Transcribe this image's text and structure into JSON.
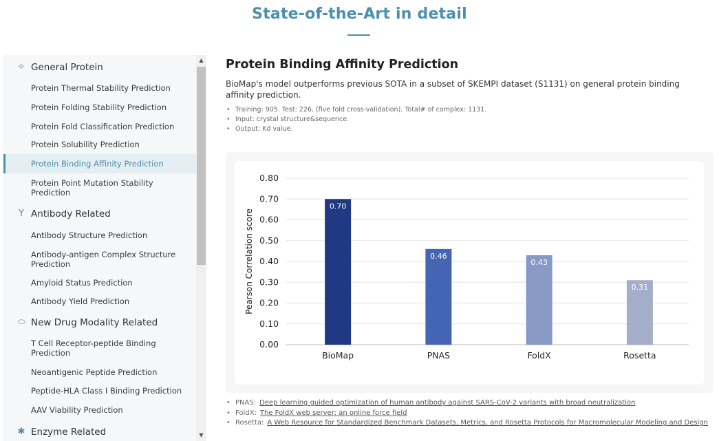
{
  "page": {
    "title": "State-of-the-Art in detail"
  },
  "sidebar": {
    "sections": [
      {
        "icon": "protein-icon",
        "label": "General Protein",
        "items": [
          "Protein Thermal Stability Prediction",
          "Protein Folding Stability Prediction",
          "Protein Fold Classification Prediction",
          "Protein Solubility Prediction",
          "Protein Binding Affinity Prediction",
          "Protein Point Mutation Stability Prediction"
        ]
      },
      {
        "icon": "antibody-icon",
        "label": "Antibody Related",
        "items": [
          "Antibody Structure Prediction",
          "Antibody-antigen Complex Structure Prediction",
          "Amyloid Status Prediction",
          "Antibody Yield Prediction"
        ]
      },
      {
        "icon": "pill-icon",
        "label": "New Drug Modality Related",
        "items": [
          "T Cell Receptor-peptide Binding Prediction",
          "Neoantigenic Peptide Prediction",
          "Peptide-HLA Class I Binding Prediction",
          "AAV Viability Prediction"
        ]
      },
      {
        "icon": "enzyme-icon",
        "label": "Enzyme Related",
        "items": []
      }
    ],
    "active_item": "Protein Binding Affinity Prediction"
  },
  "main": {
    "title": "Protein Binding Affinity Prediction",
    "description": "BioMap's model outperforms previous SOTA in a subset of SKEMPI dataset (S1131) on general protein binding affinity prediction.",
    "bullets": [
      "Training: 905. Test: 226. (five fold cross-validation). Total# of complex: 1131.",
      "Input: crystal structure&sequence.",
      "Output: Kd value."
    ]
  },
  "chart_data": {
    "type": "bar",
    "categories": [
      "BioMap",
      "PNAS",
      "FoldX",
      "Rosetta"
    ],
    "values": [
      0.7,
      0.46,
      0.43,
      0.31
    ],
    "value_labels": [
      "0.70",
      "0.46",
      "0.43",
      "0.31"
    ],
    "title": "",
    "xlabel": "",
    "ylabel": "Pearson Correlation score",
    "ylim": [
      0,
      0.8
    ],
    "yticks": [
      "0.00",
      "0.10",
      "0.20",
      "0.30",
      "0.40",
      "0.50",
      "0.60",
      "0.70",
      "0.80"
    ],
    "grid": true,
    "colors": [
      "#1f3a82",
      "#4564b3",
      "#8799c4",
      "#a5aec8"
    ]
  },
  "references": [
    {
      "name": "PNAS:",
      "text": "Deep learning guided optimization of human antibody against SARS-CoV-2 variants with broad neutralization"
    },
    {
      "name": "FoldX:",
      "text": "The FoldX web server: an online force field"
    },
    {
      "name": "Rosetta:",
      "text": "A Web Resource for Standardized Benchmark Datasets, Metrics, and Rosetta Protocols for Macromolecular Modeling and Design"
    }
  ]
}
